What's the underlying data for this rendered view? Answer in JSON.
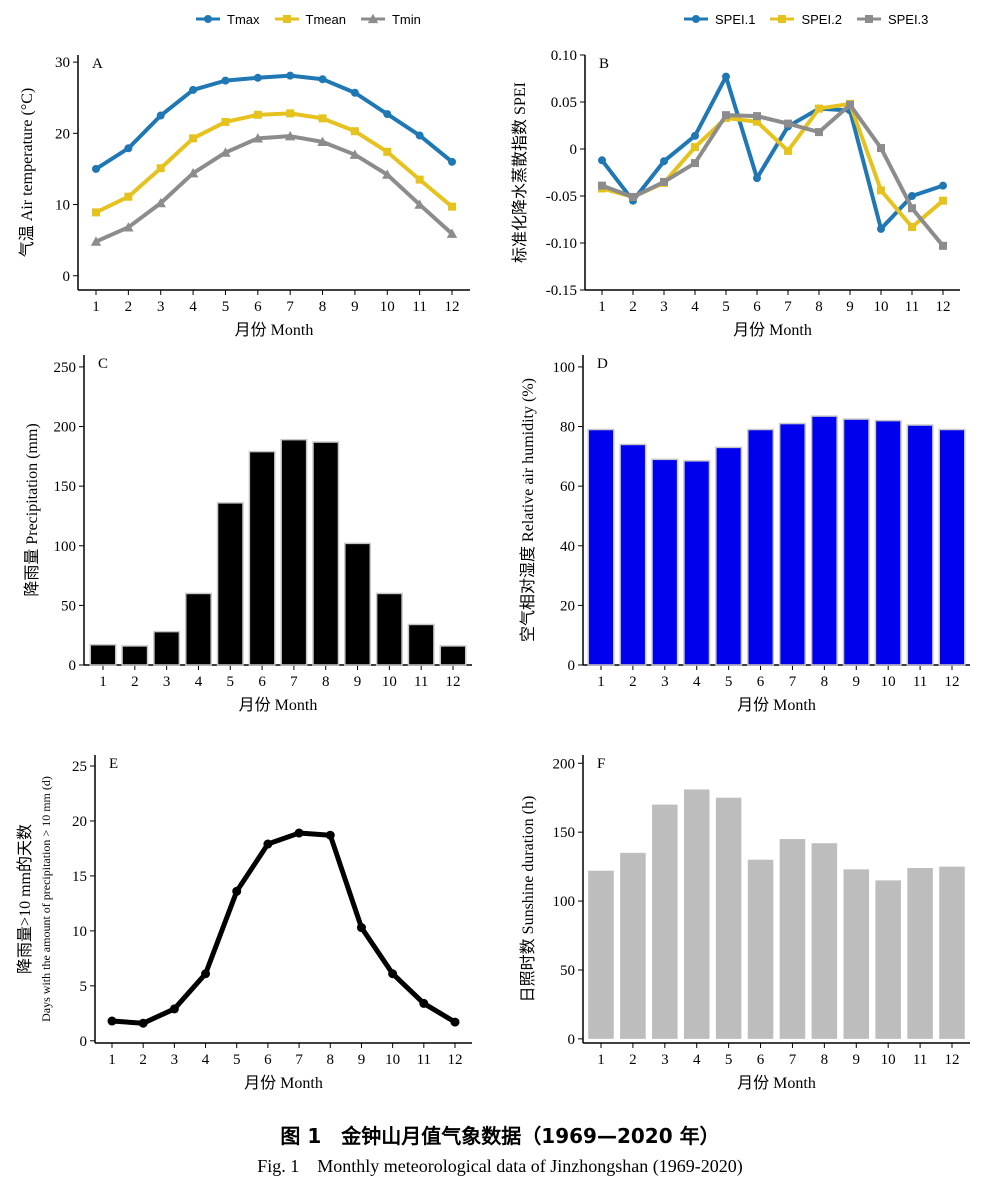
{
  "figure": {
    "caption_zh": "图 1　金钟山月值气象数据（1969—2020 年）",
    "caption_en": "Fig. 1　Monthly meteorological data of Jinzhongshan (1969-2020)"
  },
  "legends": {
    "temperature": [
      {
        "name": "Tmax",
        "color": "#1f77b4",
        "marker": "circle"
      },
      {
        "name": "Tmean",
        "color": "#e6c21e",
        "marker": "square"
      },
      {
        "name": "Tmin",
        "color": "#8c8c8c",
        "marker": "triangle"
      }
    ],
    "spei": [
      {
        "name": "SPEI.1",
        "color": "#1f77b4",
        "marker": "circle"
      },
      {
        "name": "SPEI.2",
        "color": "#e6c21e",
        "marker": "square"
      },
      {
        "name": "SPEI.3",
        "color": "#8c8c8c",
        "marker": "square"
      }
    ]
  },
  "chart_data": [
    {
      "id": "A",
      "panel_label": "A",
      "type": "line",
      "ylabel": "气温  Air temperature (°C)",
      "xlabel": "月份 Month",
      "x": [
        1,
        2,
        3,
        4,
        5,
        6,
        7,
        8,
        9,
        10,
        11,
        12
      ],
      "ylim": [
        -2,
        31
      ],
      "yticks": [
        0,
        10,
        20,
        30
      ],
      "ytick_labels": [
        "0",
        "10",
        "20",
        "30"
      ],
      "series": [
        {
          "name": "Tmax",
          "color": "#1f77b4",
          "marker": "circle",
          "values": [
            15.0,
            17.9,
            22.5,
            26.1,
            27.4,
            27.8,
            28.1,
            27.6,
            25.7,
            22.7,
            19.7,
            16.0
          ]
        },
        {
          "name": "Tmean",
          "color": "#e6c21e",
          "marker": "square",
          "values": [
            8.9,
            11.1,
            15.1,
            19.3,
            21.6,
            22.6,
            22.8,
            22.1,
            20.3,
            17.4,
            13.5,
            9.7
          ]
        },
        {
          "name": "Tmin",
          "color": "#8c8c8c",
          "marker": "triangle",
          "values": [
            4.8,
            6.8,
            10.2,
            14.4,
            17.3,
            19.3,
            19.6,
            18.8,
            17.0,
            14.2,
            10.0,
            5.9
          ]
        }
      ]
    },
    {
      "id": "B",
      "panel_label": "B",
      "type": "line",
      "ylabel": "标准化降水蒸散指数  SPEI",
      "xlabel": "月份 Month",
      "x": [
        1,
        2,
        3,
        4,
        5,
        6,
        7,
        8,
        9,
        10,
        11,
        12
      ],
      "ylim": [
        -0.15,
        0.1
      ],
      "yticks": [
        -0.15,
        -0.1,
        -0.05,
        0,
        0.05,
        0.1
      ],
      "ytick_labels": [
        "-0.15",
        "-0.10",
        "-0.05",
        "0",
        "0.05",
        "0.10"
      ],
      "series": [
        {
          "name": "SPEI.1",
          "color": "#1f77b4",
          "marker": "circle",
          "values": [
            -0.012,
            -0.055,
            -0.013,
            0.014,
            0.077,
            -0.031,
            0.024,
            0.043,
            0.041,
            -0.085,
            -0.05,
            -0.039
          ]
        },
        {
          "name": "SPEI.2",
          "color": "#e6c21e",
          "marker": "square",
          "values": [
            -0.042,
            -0.051,
            -0.036,
            0.002,
            0.033,
            0.029,
            -0.002,
            0.043,
            0.048,
            -0.044,
            -0.083,
            -0.055
          ]
        },
        {
          "name": "SPEI.3",
          "color": "#8c8c8c",
          "marker": "square",
          "values": [
            -0.039,
            -0.051,
            -0.035,
            -0.015,
            0.036,
            0.035,
            0.027,
            0.018,
            0.047,
            0.001,
            -0.063,
            -0.103
          ]
        }
      ]
    },
    {
      "id": "C",
      "panel_label": "C",
      "type": "bar",
      "ylabel": "降雨量  Precipitation (mm)",
      "xlabel": "月份 Month",
      "categories": [
        "1",
        "2",
        "3",
        "4",
        "5",
        "6",
        "7",
        "8",
        "9",
        "10",
        "11",
        "12"
      ],
      "values": [
        17,
        16,
        28,
        60,
        136,
        179,
        189,
        187,
        102,
        60,
        34,
        16
      ],
      "ylim": [
        0,
        260
      ],
      "yticks": [
        0,
        50,
        100,
        150,
        200,
        250
      ],
      "ytick_labels": [
        "0",
        "50",
        "100",
        "150",
        "200",
        "250"
      ],
      "color": "#000000",
      "edge": "#c8c8c8"
    },
    {
      "id": "D",
      "panel_label": "D",
      "type": "bar",
      "ylabel": "空气相对湿度  Relative air humidity (%)",
      "xlabel": "月份 Month",
      "categories": [
        "1",
        "2",
        "3",
        "4",
        "5",
        "6",
        "7",
        "8",
        "9",
        "10",
        "11",
        "12"
      ],
      "values": [
        79,
        74,
        69,
        68.5,
        73,
        79,
        81,
        83.5,
        82.5,
        82,
        80.5,
        79
      ],
      "ylim": [
        0,
        104
      ],
      "yticks": [
        0,
        20,
        40,
        60,
        80,
        100
      ],
      "ytick_labels": [
        "0",
        "20",
        "40",
        "60",
        "80",
        "100"
      ],
      "color": "#0000ee",
      "edge": "#c8c8c8"
    },
    {
      "id": "E",
      "panel_label": "E",
      "type": "line",
      "ylabel": "降雨量>10 mm的天数",
      "ylabel2": "Days with the amount of precipitation > 10 mm (d)",
      "xlabel": "月份 Month",
      "x": [
        1,
        2,
        3,
        4,
        5,
        6,
        7,
        8,
        9,
        10,
        11,
        12
      ],
      "ylim": [
        -0.2,
        26
      ],
      "yticks": [
        0,
        5,
        10,
        15,
        20,
        25
      ],
      "ytick_labels": [
        "0",
        "5",
        "10",
        "15",
        "20",
        "25"
      ],
      "series": [
        {
          "name": "Days",
          "color": "#000000",
          "marker": "circle",
          "values": [
            1.8,
            1.6,
            2.9,
            6.1,
            13.6,
            17.9,
            18.9,
            18.7,
            10.3,
            6.1,
            3.4,
            1.7
          ]
        }
      ]
    },
    {
      "id": "F",
      "panel_label": "F",
      "type": "bar",
      "ylabel": "日照时数  Sunshine duration (h)",
      "xlabel": "月份 Month",
      "categories": [
        "1",
        "2",
        "3",
        "4",
        "5",
        "6",
        "7",
        "8",
        "9",
        "10",
        "11",
        "12"
      ],
      "values": [
        122,
        135,
        170,
        181,
        175,
        130,
        145,
        142,
        123,
        115,
        124,
        125
      ],
      "ylim": [
        -3,
        206
      ],
      "yticks": [
        0,
        50,
        100,
        150,
        200
      ],
      "ytick_labels": [
        "0",
        "50",
        "100",
        "150",
        "200"
      ],
      "color": "#bdbdbd",
      "edge": "none"
    }
  ]
}
